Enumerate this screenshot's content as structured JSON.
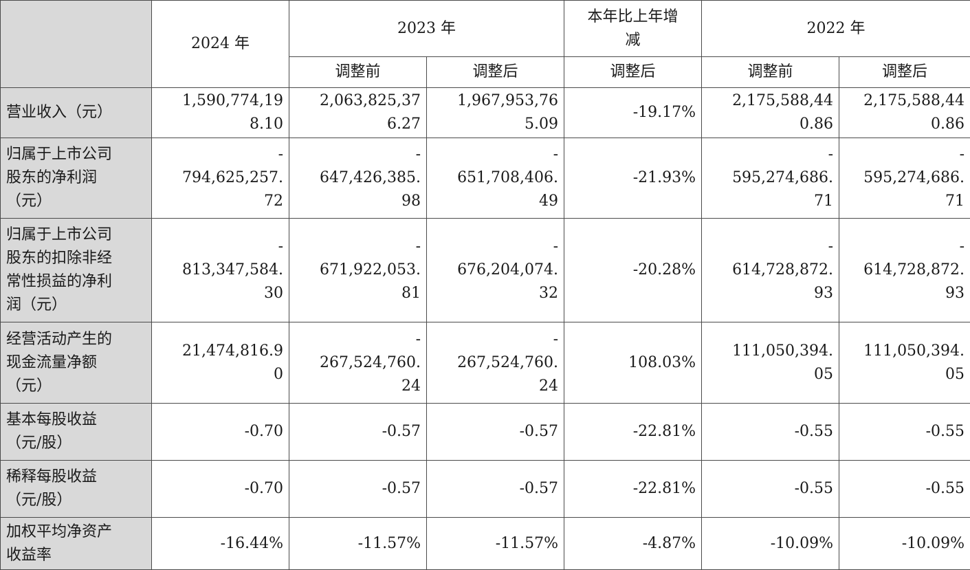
{
  "header": {
    "y2024": "2024 年",
    "y2023": "2023 年",
    "change": "本年比上年增\n减",
    "y2022": "2022 年",
    "before": "调整前",
    "after": "调整后",
    "change_sub": "调整后"
  },
  "rows": [
    {
      "label": "营业收入（元）",
      "v2024": "1,590,774,19\n8.10",
      "v2023b": "2,063,825,37\n6.27",
      "v2023a": "1,967,953,76\n5.09",
      "chg": "-19.17%",
      "v2022b": "2,175,588,44\n0.86",
      "v2022a": "2,175,588,44\n0.86"
    },
    {
      "label": "归属于上市公司\n股东的净利润\n（元）",
      "v2024": "-\n794,625,257.\n72",
      "v2023b": "-\n647,426,385.\n98",
      "v2023a": "-\n651,708,406.\n49",
      "chg": "-21.93%",
      "v2022b": "-\n595,274,686.\n71",
      "v2022a": "-\n595,274,686.\n71"
    },
    {
      "label": "归属于上市公司\n股东的扣除非经\n常性损益的净利\n润（元）",
      "v2024": "-\n813,347,584.\n30",
      "v2023b": "-\n671,922,053.\n81",
      "v2023a": "-\n676,204,074.\n32",
      "chg": "-20.28%",
      "v2022b": "-\n614,728,872.\n93",
      "v2022a": "-\n614,728,872.\n93"
    },
    {
      "label": "经营活动产生的\n现金流量净额\n（元）",
      "v2024": "21,474,816.9\n0",
      "v2023b": "-\n267,524,760.\n24",
      "v2023a": "-\n267,524,760.\n24",
      "chg": "108.03%",
      "v2022b": "111,050,394.\n05",
      "v2022a": "111,050,394.\n05"
    },
    {
      "label": "基本每股收益\n（元/股）",
      "v2024": "-0.70",
      "v2023b": "-0.57",
      "v2023a": "-0.57",
      "chg": "-22.81%",
      "v2022b": "-0.55",
      "v2022a": "-0.55"
    },
    {
      "label": "稀释每股收益\n（元/股）",
      "v2024": "-0.70",
      "v2023b": "-0.57",
      "v2023a": "-0.57",
      "chg": "-22.81%",
      "v2022b": "-0.55",
      "v2022a": "-0.55"
    },
    {
      "label": "加权平均净资产\n收益率",
      "v2024": "-16.44%",
      "v2023b": "-11.57%",
      "v2023a": "-11.57%",
      "chg": "-4.87%",
      "v2022b": "-10.09%",
      "v2022a": "-10.09%"
    }
  ]
}
